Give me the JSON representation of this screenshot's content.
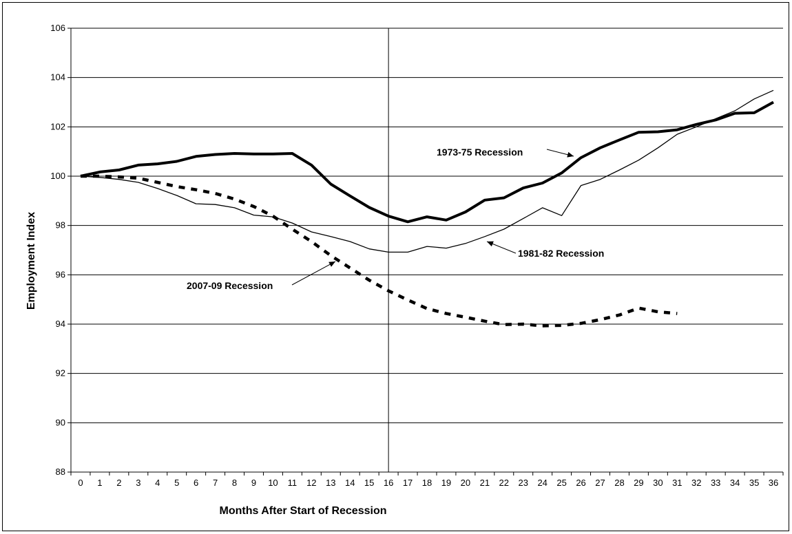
{
  "chart_data": {
    "type": "line",
    "xlabel": "Months After Start of Recession",
    "ylabel": "Employment Index",
    "xlim": [
      0,
      36
    ],
    "ylim": [
      88,
      106
    ],
    "x_ticks": [
      0,
      1,
      2,
      3,
      4,
      5,
      6,
      7,
      8,
      9,
      10,
      11,
      12,
      13,
      14,
      15,
      16,
      17,
      18,
      19,
      20,
      21,
      22,
      23,
      24,
      25,
      26,
      27,
      28,
      29,
      30,
      31,
      32,
      33,
      34,
      35,
      36
    ],
    "y_ticks": [
      88,
      90,
      92,
      94,
      96,
      98,
      100,
      102,
      104,
      106
    ],
    "grid": "horizontal",
    "reference_line_x": 16,
    "series": [
      {
        "name": "1973-75 Recession",
        "style": "thick-solid",
        "x": [
          0,
          1,
          2,
          3,
          4,
          5,
          6,
          7,
          8,
          9,
          10,
          11,
          12,
          13,
          14,
          15,
          16,
          17,
          18,
          19,
          20,
          21,
          22,
          23,
          24,
          25,
          26,
          27,
          28,
          29,
          30,
          31,
          32,
          33,
          34,
          35,
          36
        ],
        "values": [
          100.0,
          100.17,
          100.25,
          100.45,
          100.5,
          100.6,
          100.8,
          100.88,
          100.92,
          100.9,
          100.9,
          100.92,
          100.45,
          99.68,
          99.2,
          98.73,
          98.38,
          98.15,
          98.35,
          98.22,
          98.55,
          99.03,
          99.12,
          99.52,
          99.72,
          100.13,
          100.75,
          101.15,
          101.47,
          101.78,
          101.8,
          101.88,
          102.1,
          102.28,
          102.55,
          102.57,
          103.0
        ]
      },
      {
        "name": "1981-82 Recession",
        "style": "thin-solid",
        "x": [
          0,
          1,
          2,
          3,
          4,
          5,
          6,
          7,
          8,
          9,
          10,
          11,
          12,
          13,
          14,
          15,
          16,
          17,
          18,
          19,
          20,
          21,
          22,
          23,
          24,
          25,
          26,
          27,
          28,
          29,
          30,
          31,
          32,
          33,
          34,
          35,
          36
        ],
        "values": [
          100.0,
          99.95,
          99.87,
          99.75,
          99.5,
          99.22,
          98.88,
          98.85,
          98.72,
          98.42,
          98.35,
          98.1,
          97.74,
          97.55,
          97.35,
          97.05,
          96.92,
          96.92,
          97.15,
          97.08,
          97.27,
          97.55,
          97.85,
          98.28,
          98.72,
          98.4,
          99.62,
          99.87,
          100.25,
          100.65,
          101.15,
          101.7,
          102.0,
          102.33,
          102.65,
          103.13,
          103.48
        ]
      },
      {
        "name": "2007-09 Recession",
        "style": "thick-dashed",
        "x": [
          0,
          1,
          2,
          3,
          4,
          5,
          6,
          7,
          8,
          9,
          10,
          11,
          12,
          13,
          14,
          15,
          16,
          17,
          18,
          19,
          20,
          21,
          22,
          23,
          24,
          25,
          26,
          27,
          28,
          29,
          30,
          31
        ],
        "values": [
          100.0,
          100.0,
          99.97,
          99.92,
          99.75,
          99.58,
          99.45,
          99.3,
          99.07,
          98.77,
          98.38,
          97.85,
          97.35,
          96.78,
          96.28,
          95.78,
          95.35,
          94.98,
          94.63,
          94.43,
          94.28,
          94.12,
          93.98,
          94.0,
          93.93,
          93.95,
          94.03,
          94.18,
          94.37,
          94.65,
          94.5,
          94.43
        ]
      }
    ],
    "annotations": [
      {
        "text": "1973-75 Recession"
      },
      {
        "text": "1981-82 Recession"
      },
      {
        "text": "2007-09 Recession"
      }
    ]
  }
}
